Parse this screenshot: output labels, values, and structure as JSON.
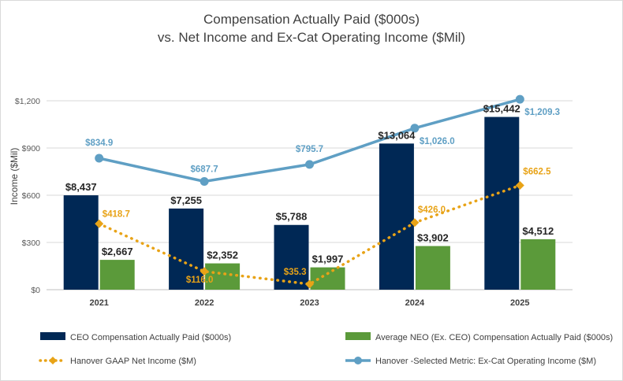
{
  "chart_data": {
    "type": "bar",
    "title_lines": [
      "Compensation Actually Paid ($000s)",
      "vs. Net Income and Ex-Cat Operating Income ($Mil)"
    ],
    "ylabel": "Income ($Mil)",
    "xlabel": "",
    "ylim": [
      0,
      1350
    ],
    "yticks": [
      0,
      300,
      600,
      900,
      1200
    ],
    "ytick_labels": [
      "$0",
      "$300",
      "$600",
      "$900",
      "$1,200"
    ],
    "categories": [
      "2021",
      "2022",
      "2023",
      "2024",
      "2025"
    ],
    "grid": true,
    "legend_position": "bottom",
    "bar_series": [
      {
        "name": "CEO Compensation Actually Paid ($000s)",
        "color": "#002855",
        "values": [
          8437,
          7255,
          5788,
          13064,
          15442
        ],
        "labels": [
          "$8,437",
          "$7,255",
          "$5,788",
          "$13,064",
          "$15,442"
        ]
      },
      {
        "name": "Average NEO (Ex. CEO) Compensation Actually Paid ($000s)",
        "color": "#5b9a3a",
        "values": [
          2667,
          2352,
          1997,
          3902,
          4512
        ],
        "labels": [
          "$2,667",
          "$2,352",
          "$1,997",
          "$3,902",
          "$4,512"
        ]
      }
    ],
    "line_series": [
      {
        "name": "Hanover GAAP Net Income ($M)",
        "color": "#e8a317",
        "style": "dotted",
        "marker": "diamond",
        "values": [
          418.7,
          116.0,
          35.3,
          426.0,
          662.5
        ],
        "labels": [
          "$418.7",
          "$116.0",
          "$35.3",
          "$426.0",
          "$662.5"
        ]
      },
      {
        "name": "Hanover -Selected Metric: Ex-Cat Operating Income ($M)",
        "color": "#5f9fc4",
        "style": "solid",
        "marker": "circle",
        "values": [
          834.9,
          687.7,
          795.7,
          1026.0,
          1209.3
        ],
        "labels": [
          "$834.9",
          "$687.7",
          "$795.7",
          "$1,026.0",
          "$1,209.3"
        ]
      }
    ]
  }
}
